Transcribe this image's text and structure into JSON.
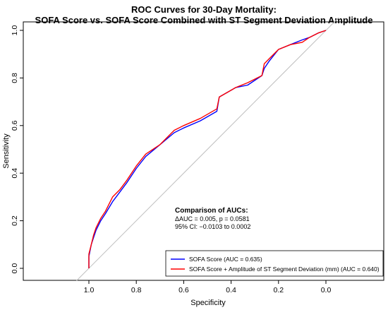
{
  "chart_data": {
    "type": "line",
    "title": "ROC Curves for 30-Day Mortality:",
    "subtitle": "SOFA Score vs. SOFA Score Combined with ST Segment Deviation Amplitude",
    "xlabel": "Specificity",
    "ylabel": "Sensitivity",
    "xlim": [
      1.25,
      -0.05
    ],
    "ylim": [
      0.0,
      1.0
    ],
    "x_reversed": true,
    "xticks": [
      "1.0",
      "0.8",
      "0.6",
      "0.4",
      "0.2",
      "0.0"
    ],
    "xtick_values": [
      1.0,
      0.8,
      0.6,
      0.4,
      0.2,
      0.0
    ],
    "yticks": [
      "0.0",
      "0.2",
      "0.4",
      "0.6",
      "0.8",
      "1.0"
    ],
    "ytick_values": [
      0.0,
      0.2,
      0.4,
      0.6,
      0.8,
      1.0
    ],
    "grid": false,
    "legend_position": "bottom-right",
    "reference_line": {
      "x": [
        1.0,
        0.0
      ],
      "y": [
        0.0,
        1.0
      ],
      "color": "#bfbfbf"
    },
    "series": [
      {
        "name": "SOFA Score (AUC = 0.635)",
        "color": "#0000ff",
        "x": [
          1.0,
          1.0,
          0.99,
          0.98,
          0.97,
          0.95,
          0.93,
          0.9,
          0.87,
          0.84,
          0.8,
          0.76,
          0.7,
          0.64,
          0.6,
          0.53,
          0.46,
          0.45,
          0.38,
          0.33,
          0.27,
          0.26,
          0.24,
          0.2,
          0.15,
          0.1,
          0.07,
          0.03,
          0.0
        ],
        "y": [
          0.0,
          0.05,
          0.1,
          0.13,
          0.16,
          0.2,
          0.23,
          0.28,
          0.32,
          0.36,
          0.42,
          0.47,
          0.52,
          0.57,
          0.59,
          0.62,
          0.66,
          0.72,
          0.76,
          0.77,
          0.81,
          0.84,
          0.87,
          0.92,
          0.94,
          0.96,
          0.97,
          0.99,
          1.0
        ]
      },
      {
        "name": "SOFA Score + Amplitude of ST Segment Deviation (mm) (AUC = 0.640)",
        "color": "#ff0000",
        "x": [
          1.0,
          1.0,
          0.99,
          0.98,
          0.97,
          0.95,
          0.93,
          0.9,
          0.87,
          0.84,
          0.8,
          0.76,
          0.7,
          0.64,
          0.6,
          0.53,
          0.46,
          0.45,
          0.38,
          0.33,
          0.27,
          0.26,
          0.24,
          0.2,
          0.15,
          0.1,
          0.07,
          0.03,
          0.0
        ],
        "y": [
          0.0,
          0.06,
          0.1,
          0.14,
          0.17,
          0.21,
          0.24,
          0.3,
          0.33,
          0.37,
          0.43,
          0.48,
          0.52,
          0.58,
          0.6,
          0.63,
          0.67,
          0.72,
          0.76,
          0.78,
          0.81,
          0.86,
          0.88,
          0.92,
          0.94,
          0.95,
          0.97,
          0.99,
          1.0
        ]
      }
    ],
    "annotation": {
      "heading": "Comparison of AUCs:",
      "line1": "ΔAUC = 0.005, p = 0.0581",
      "line2": "95% CI: −0.0103 to  0.0002"
    }
  }
}
